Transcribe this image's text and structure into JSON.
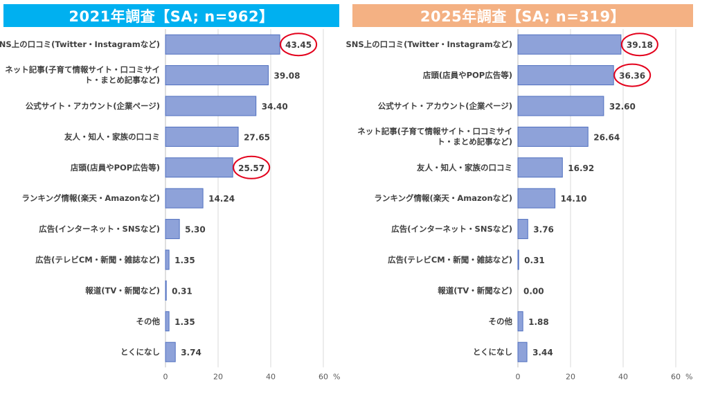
{
  "colors": {
    "left_banner": "#00B0F0",
    "right_banner": "#F4B183",
    "bar_fill": "#8EA2D9",
    "bar_stroke": "#4F6FBF",
    "highlight_circle": "#E3001B",
    "grid": "#D9D9D9"
  },
  "chart_data": [
    {
      "type": "bar",
      "orientation": "horizontal",
      "title": "2021年調査【SA; n=962】",
      "unit_label": "%",
      "xlim": [
        0,
        60
      ],
      "ticks": [
        0,
        20,
        40,
        60
      ],
      "grid": true,
      "categories": [
        [
          "SNS上の口コミ(Twitter・Instagramなど)"
        ],
        [
          "ネット記事(子育て情報サイト・口コミサイ",
          "ト・まとめ記事など)"
        ],
        [
          "公式サイト・アカウント(企業ページ)"
        ],
        [
          "友人・知人・家族の口コミ"
        ],
        [
          "店頭(店員やPOP広告等)"
        ],
        [
          "ランキング情報(楽天・Amazonなど)"
        ],
        [
          "広告(インターネット・SNSなど)"
        ],
        [
          "広告(テレビCM・新聞・雑誌など)"
        ],
        [
          "報道(TV・新聞など)"
        ],
        [
          "その他"
        ],
        [
          "とくになし"
        ]
      ],
      "values": [
        43.45,
        39.08,
        34.4,
        27.65,
        25.57,
        14.24,
        5.3,
        1.35,
        0.31,
        1.35,
        3.74
      ],
      "value_labels": [
        "43.45",
        "39.08",
        "34.40",
        "27.65",
        "25.57",
        "14.24",
        "5.30",
        "1.35",
        "0.31",
        "1.35",
        "3.74"
      ],
      "highlighted": [
        0,
        4
      ]
    },
    {
      "type": "bar",
      "orientation": "horizontal",
      "title": "2025年調査【SA; n=319】",
      "unit_label": "%",
      "xlim": [
        0,
        60
      ],
      "ticks": [
        0,
        20,
        40,
        60
      ],
      "grid": true,
      "categories": [
        [
          "SNS上の口コミ(Twitter・Instagramなど)"
        ],
        [
          "店頭(店員やPOP広告等)"
        ],
        [
          "公式サイト・アカウント(企業ページ)"
        ],
        [
          "ネット記事(子育て情報サイト・口コミサイ",
          "ト・まとめ記事など)"
        ],
        [
          "友人・知人・家族の口コミ"
        ],
        [
          "ランキング情報(楽天・Amazonなど)"
        ],
        [
          "広告(インターネット・SNSなど)"
        ],
        [
          "広告(テレビCM・新聞・雑誌など)"
        ],
        [
          "報道(TV・新聞など)"
        ],
        [
          "その他"
        ],
        [
          "とくになし"
        ]
      ],
      "values": [
        39.18,
        36.36,
        32.6,
        26.64,
        16.92,
        14.1,
        3.76,
        0.31,
        0.0,
        1.88,
        3.44
      ],
      "value_labels": [
        "39.18",
        "36.36",
        "32.60",
        "26.64",
        "16.92",
        "14.10",
        "3.76",
        "0.31",
        "0.00",
        "1.88",
        "3.44"
      ],
      "highlighted": [
        0,
        1
      ]
    }
  ]
}
